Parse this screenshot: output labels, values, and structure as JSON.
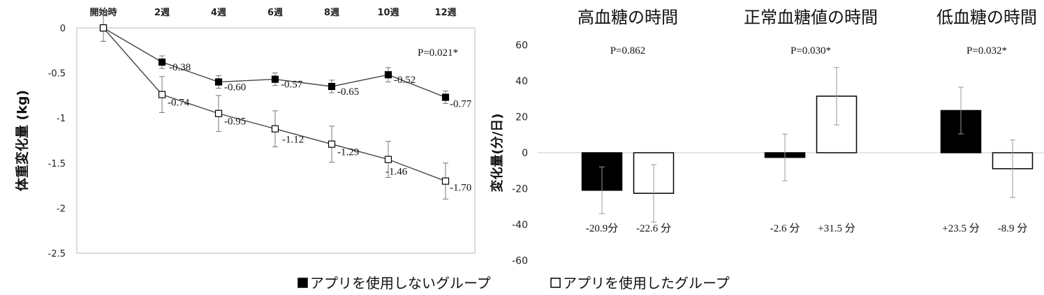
{
  "chart_data": [
    {
      "type": "line",
      "ylabel": "体重変化量 (kg)",
      "categories": [
        "開始時",
        "2週",
        "4週",
        "6週",
        "8週",
        "10週",
        "12週"
      ],
      "ylim": [
        -2.5,
        0
      ],
      "yticks": [
        "0",
        "-0.5",
        "-1",
        "-1.5",
        "-2",
        "-2.5"
      ],
      "annotation": "P=0.021*",
      "series": [
        {
          "name": "アプリを使用しないグループ",
          "marker": "filled-square",
          "values": [
            0,
            -0.38,
            -0.6,
            -0.57,
            -0.65,
            -0.52,
            -0.77
          ],
          "errors": [
            0.15,
            0.07,
            0.07,
            0.07,
            0.07,
            0.08,
            0.07
          ],
          "labels": [
            "",
            "-0.38",
            "-0.60",
            "-0.57",
            "-0.65",
            "-0.52",
            "-0.77"
          ]
        },
        {
          "name": "アプリを使用したグループ",
          "marker": "open-square",
          "values": [
            0,
            -0.74,
            -0.95,
            -1.12,
            -1.29,
            -1.46,
            -1.7
          ],
          "errors": [
            0.15,
            0.2,
            0.2,
            0.2,
            0.2,
            0.2,
            0.2
          ],
          "labels": [
            "",
            "-0.74",
            "-0.95",
            "-1.12",
            "-1.29",
            "-1.46",
            "-1.70"
          ]
        }
      ]
    },
    {
      "type": "bar",
      "ylabel": "変化量(分/日)",
      "ylim": [
        -60,
        60
      ],
      "yticks": [
        "60",
        "40",
        "20",
        "0",
        "-20",
        "-40",
        "-60"
      ],
      "categories": [
        "高血糖の時間",
        "正常血糖値の時間",
        "低血糖の時間"
      ],
      "pvalues": [
        "P=0.862",
        "P=0.030*",
        "P=0.032*"
      ],
      "series": [
        {
          "name": "アプリを使用しないグループ",
          "fill": "#000000",
          "values": [
            -20.9,
            -2.6,
            23.5
          ],
          "errors": [
            13,
            13,
            13
          ],
          "labels": [
            "-20.9分",
            "-2.6 分",
            "+23.5 分"
          ]
        },
        {
          "name": "アプリを使用したグループ",
          "fill": "#ffffff",
          "values": [
            -22.6,
            31.5,
            -8.9
          ],
          "errors": [
            16,
            16,
            16
          ],
          "labels": [
            "-22.6 分",
            "+31.5 分",
            "-8.9 分"
          ]
        }
      ]
    }
  ],
  "legend": [
    {
      "marker": "■",
      "label": "アプリを使用しないグループ"
    },
    {
      "marker": "□",
      "label": "アプリを使用したグループ"
    }
  ]
}
